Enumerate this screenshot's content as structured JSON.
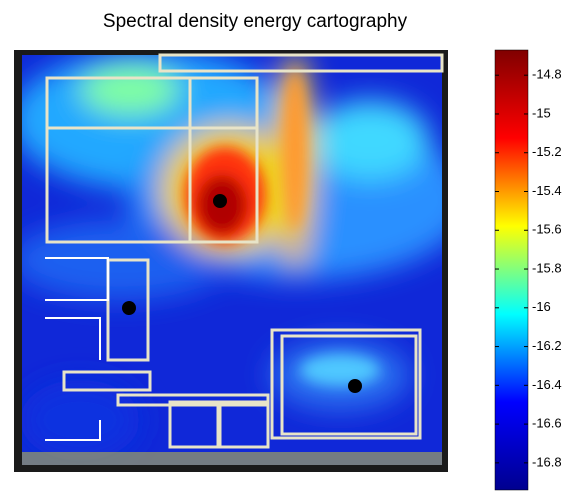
{
  "chart_data": {
    "type": "heatmap",
    "title": "Spectral density energy cartography",
    "colormap": "jet",
    "clim": [
      -16.94,
      -14.67
    ],
    "cticks": [
      -14.8,
      -15,
      -15.2,
      -15.4,
      -15.6,
      -15.8,
      -16,
      -16.2,
      -16.4,
      -16.6,
      -16.8
    ]
  }
}
